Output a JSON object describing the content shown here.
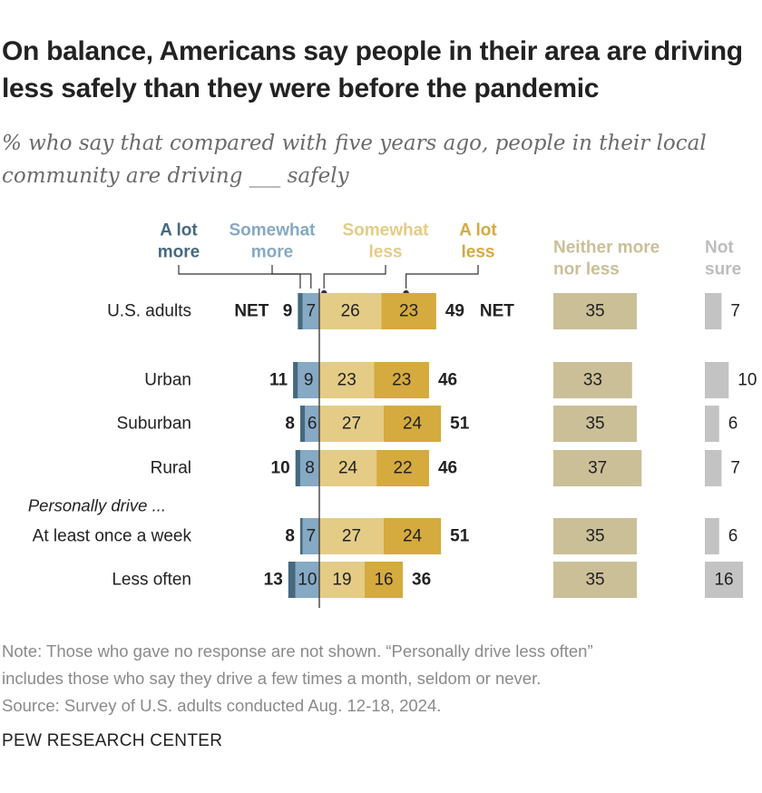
{
  "title": "On balance, Americans say people in their area are driving less safely than they were before the pandemic",
  "subtitle": "% who say that compared with five years ago, people in their local community are driving ___ safely",
  "note_lines": [
    "Note: Those who gave no response are not shown. “Personally drive less often”",
    "includes those who say they drive a few times a month, seldom or never.",
    "Source: Survey of U.S. adults conducted Aug. 12-18, 2024."
  ],
  "brand": "PEW RESEARCH CENTER",
  "colors": {
    "a_lot_more": "#466980",
    "somewhat_more": "#86a9c4",
    "somewhat_less": "#e4cc86",
    "a_lot_less": "#d5aa3f",
    "neither": "#cbbf98",
    "not_sure": "#c3c3c3",
    "text": "#222222",
    "muted_label": "#bdbdbd"
  },
  "chart_data": {
    "type": "bar",
    "orientation": "horizontal",
    "stacked": "diverging",
    "legend": [
      {
        "key": "a_lot_more",
        "lines": [
          "A lot",
          "more"
        ]
      },
      {
        "key": "somewhat_more",
        "lines": [
          "Somewhat",
          "more"
        ]
      },
      {
        "key": "somewhat_less",
        "lines": [
          "Somewhat",
          "less"
        ]
      },
      {
        "key": "a_lot_less",
        "lines": [
          "A lot",
          "less"
        ]
      },
      {
        "key": "neither",
        "lines": [
          "Neither more",
          "nor less"
        ]
      },
      {
        "key": "not_sure",
        "lines": [
          "Not",
          "sure"
        ]
      }
    ],
    "net_label": "NET",
    "group_heading": "Personally drive ...",
    "rows": [
      {
        "label": "U.S. adults",
        "a_lot_more": 2,
        "somewhat_more": 7,
        "net_more": 9,
        "somewhat_less": 26,
        "a_lot_less": 23,
        "net_less": 49,
        "neither": 35,
        "not_sure": 7,
        "show_net": true
      },
      {
        "label": "Urban",
        "a_lot_more": 2,
        "somewhat_more": 9,
        "net_more": 11,
        "somewhat_less": 23,
        "a_lot_less": 23,
        "net_less": 46,
        "neither": 33,
        "not_sure": 10
      },
      {
        "label": "Suburban",
        "a_lot_more": 2,
        "somewhat_more": 6,
        "net_more": 8,
        "somewhat_less": 27,
        "a_lot_less": 24,
        "net_less": 51,
        "neither": 35,
        "not_sure": 6
      },
      {
        "label": "Rural",
        "a_lot_more": 2,
        "somewhat_more": 8,
        "net_more": 10,
        "somewhat_less": 24,
        "a_lot_less": 22,
        "net_less": 46,
        "neither": 37,
        "not_sure": 7
      },
      {
        "label": "At least once a week",
        "a_lot_more": 1,
        "somewhat_more": 7,
        "net_more": 8,
        "somewhat_less": 27,
        "a_lot_less": 24,
        "net_less": 51,
        "neither": 35,
        "not_sure": 6
      },
      {
        "label": "Less often",
        "a_lot_more": 3,
        "somewhat_more": 10,
        "net_more": 13,
        "somewhat_less": 19,
        "a_lot_less": 16,
        "net_less": 36,
        "neither": 35,
        "not_sure": 16
      }
    ]
  }
}
